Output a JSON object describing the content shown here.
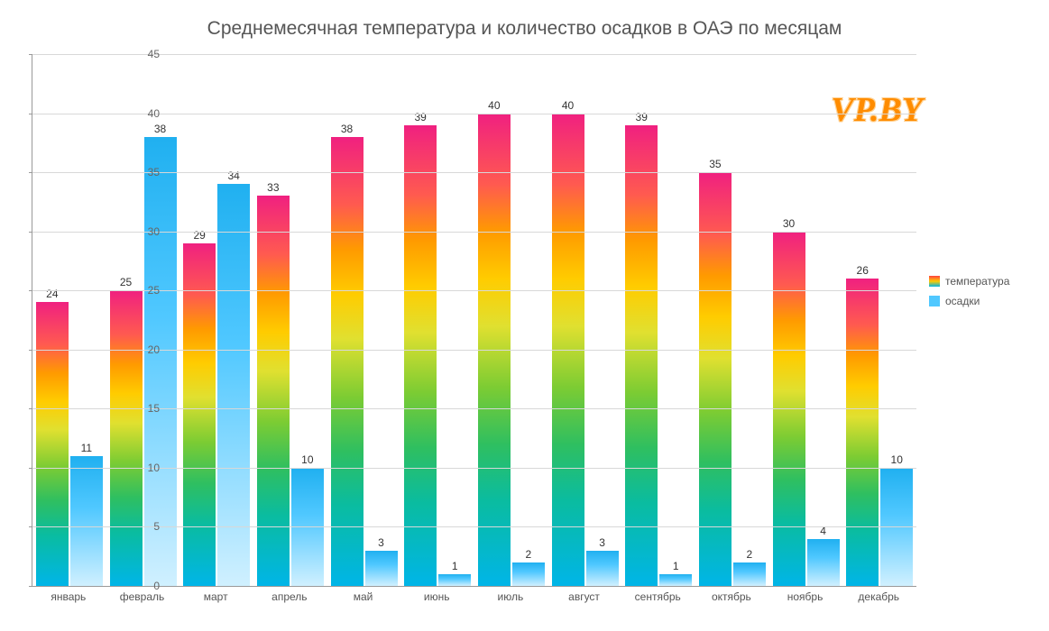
{
  "title": "Среднемесячная температура и количество осадков в ОАЭ по месяцам",
  "watermark": "VP.BY",
  "chart": {
    "type": "bar",
    "ylim": [
      0,
      45
    ],
    "ytick_step": 5,
    "yticks": [
      0,
      5,
      10,
      15,
      20,
      25,
      30,
      35,
      40,
      45
    ],
    "grid_color": "#d8d8d8",
    "background_color": "#ffffff",
    "axis_color": "#999999",
    "label_fontsize": 12,
    "title_fontsize": 21,
    "categories": [
      "январь",
      "февраль",
      "март",
      "апрель",
      "май",
      "июнь",
      "июль",
      "август",
      "сентябрь",
      "октябрь",
      "ноябрь",
      "декабрь"
    ],
    "series": [
      {
        "name": "температура",
        "style": "rainbow",
        "gradient": [
          "#00b5e8",
          "#0abca0",
          "#2fbf60",
          "#7ccc33",
          "#e0e030",
          "#ffcc00",
          "#ff9a00",
          "#ff5a50",
          "#f02080"
        ],
        "values": [
          24,
          25,
          29,
          33,
          38,
          39,
          40,
          40,
          39,
          35,
          30,
          26
        ]
      },
      {
        "name": "осадки",
        "style": "blue",
        "gradient": [
          "#d0f0ff",
          "#50c8ff",
          "#20b0f0"
        ],
        "values": [
          11,
          38,
          34,
          10,
          3,
          1,
          2,
          3,
          1,
          2,
          4,
          10
        ]
      }
    ]
  },
  "legend": {
    "items": [
      {
        "label": "температура",
        "swatch": "rainbow"
      },
      {
        "label": "осадки",
        "swatch": "blue"
      }
    ]
  }
}
